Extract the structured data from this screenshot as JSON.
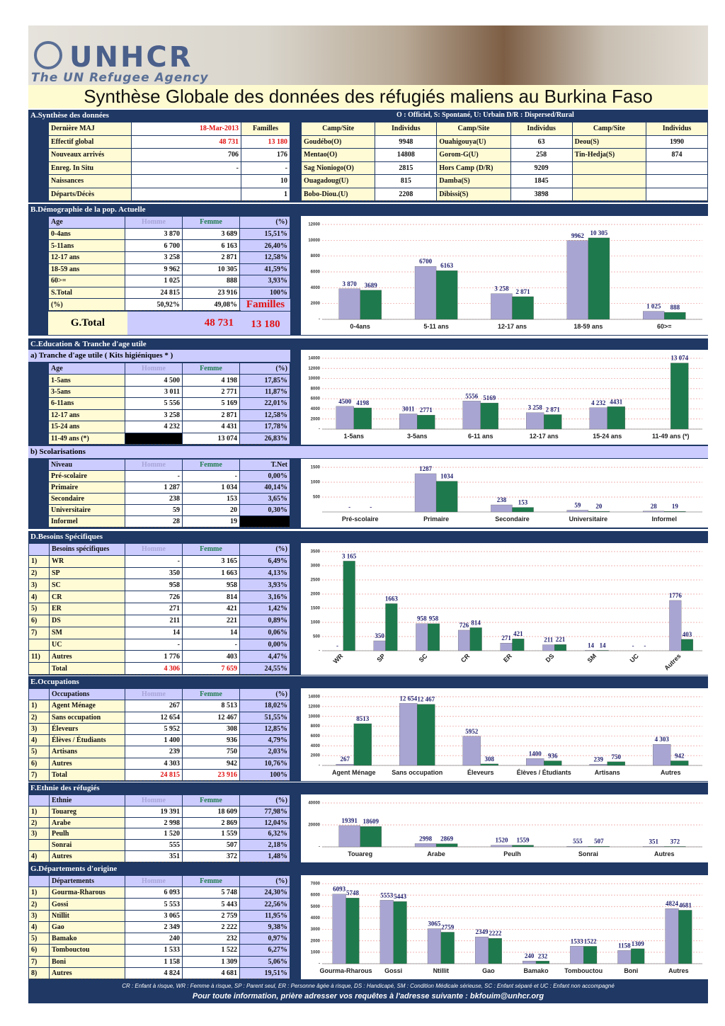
{
  "document": {
    "header": {
      "logo": "UNHCR",
      "tagline": "The UN Refugee Agency",
      "title": "Synthèse Globale des données des réfugiés maliens au Burkina Faso"
    },
    "A": {
      "title": "A.Synthèse des données",
      "legend": "O : Officiel, S: Spontané, U: Urbain D/R : Dispersed/Rural",
      "rows": [
        [
          "Dernière MAJ",
          "18-Mar-2013",
          "Familles"
        ],
        [
          "Effectif global",
          "48 731",
          "13 180"
        ],
        [
          "Nouveaux arrivés",
          "706",
          "176"
        ],
        [
          "Enreg. In Situ",
          "-",
          "-"
        ],
        [
          "Naissances",
          null,
          "10"
        ],
        [
          "Départs/Décès",
          null,
          "1"
        ]
      ],
      "camps": {
        "header": [
          "Camp/Site",
          "Individus",
          "Camp/Site",
          "Individus",
          "Camp/Site",
          "Individus"
        ],
        "rows": [
          [
            "Goudébo(O)",
            "9948",
            "Ouahigouya(U)",
            "63",
            "Deou(S)",
            "1990"
          ],
          [
            "Mentao(O)",
            "14808",
            "Gorom-G(U)",
            "258",
            "Tin-Hedja(S)",
            "874"
          ],
          [
            "Sag Nioniogo(O)",
            "2815",
            "Hors Camp (D/R)",
            "9209",
            null,
            null
          ],
          [
            "Ouagadoug(U)",
            "815",
            "Damba(S)",
            "1845",
            null,
            null
          ],
          [
            "Bobo-Diou.(U)",
            "2208",
            "Dibissi(S)",
            "3898",
            null,
            null
          ]
        ]
      }
    },
    "B": {
      "title": "B.Démographie de la pop. Actuelle",
      "header": [
        "Age",
        "Homme",
        "Femme",
        "(%)"
      ],
      "rows": [
        [
          "0-4ans",
          "3 870",
          "3 689",
          "15,51%"
        ],
        [
          "5-11ans",
          "6 700",
          "6 163",
          "26,40%"
        ],
        [
          "12-17 ans",
          "3 258",
          "2 871",
          "12,58%"
        ],
        [
          "18-59 ans",
          "9 962",
          "10 305",
          "41,59%"
        ],
        [
          "60>=",
          "1 025",
          "888",
          "3,93%"
        ],
        [
          "S.Total",
          "24 815",
          "23 916",
          "100%"
        ],
        [
          "(%)",
          "50,92%",
          "49,08%",
          null
        ]
      ],
      "gtotal_label": "G.Total",
      "gtotal": "48 731",
      "familles_label": "Familles",
      "familles": "13 180"
    },
    "C": {
      "title": "C.Education & Tranche d'age utile",
      "a": {
        "title": "a) Tranche d'age utile ( Kits higiéniques * )",
        "header": [
          "Age",
          "Homme",
          "Femme",
          "(%)"
        ],
        "rows": [
          [
            "1-5ans",
            "4 500",
            "4 198",
            "17,85%"
          ],
          [
            "3-5ans",
            "3 011",
            "2 771",
            "11,87%"
          ],
          [
            "6-11ans",
            "5 556",
            "5 169",
            "22,01%"
          ],
          [
            "12-17 ans",
            "3 258",
            "2 871",
            "12,58%"
          ],
          [
            "15-24 ans",
            "4 232",
            "4 431",
            "17,78%"
          ],
          [
            "11-49 ans (*)",
            null,
            "13 074",
            "26,83%"
          ]
        ]
      },
      "b": {
        "title": "b) Scolarisations",
        "header": [
          "Niveau",
          "Homme",
          "Femme",
          "T.Net"
        ],
        "rows": [
          [
            "Pré-scolaire",
            "-",
            "-",
            "0,00%"
          ],
          [
            "Primaire",
            "1 287",
            "1 034",
            "40,14%"
          ],
          [
            "Secondaire",
            "238",
            "153",
            "3,65%"
          ],
          [
            "Universitaire",
            "59",
            "20",
            "0,30%"
          ],
          [
            "Informel",
            "28",
            "19",
            null
          ]
        ]
      }
    },
    "D": {
      "title": "D.Besoins Spécifiques",
      "header": [
        null,
        "Besoins spécifiques",
        "Homme",
        "Femme",
        "(%)"
      ],
      "rows": [
        [
          "1)",
          "WR",
          "-",
          "3 165",
          "6,49%"
        ],
        [
          "2)",
          "SP",
          "350",
          "1 663",
          "4,13%"
        ],
        [
          "3)",
          "SC",
          "958",
          "958",
          "3,93%"
        ],
        [
          "4)",
          "CR",
          "726",
          "814",
          "3,16%"
        ],
        [
          "5)",
          "ER",
          "271",
          "421",
          "1,42%"
        ],
        [
          "6)",
          "DS",
          "211",
          "221",
          "0,89%"
        ],
        [
          "7)",
          "SM",
          "14",
          "14",
          "0,06%"
        ],
        [
          null,
          "UC",
          "-",
          "-",
          "0,00%"
        ],
        [
          "11)",
          "Autres",
          "1 776",
          "403",
          "4,47%"
        ],
        [
          null,
          "Total",
          "4 306",
          "7 659",
          "24,55%"
        ]
      ]
    },
    "E": {
      "title": "E.Occupations",
      "header": [
        null,
        "Occupations",
        "Homme",
        "Femme",
        "(%)"
      ],
      "rows": [
        [
          "1)",
          "Agent Ménage",
          "267",
          "8 513",
          "18,02%"
        ],
        [
          "2)",
          "Sans occupation",
          "12 654",
          "12 467",
          "51,55%"
        ],
        [
          "3)",
          "Éleveurs",
          "5 952",
          "308",
          "12,85%"
        ],
        [
          "4)",
          "Élèves / Étudiants",
          "1 400",
          "936",
          "4,79%"
        ],
        [
          "5)",
          "Artisans",
          "239",
          "750",
          "2,03%"
        ],
        [
          "6)",
          "Autres",
          "4 303",
          "942",
          "10,76%"
        ],
        [
          "7)",
          "Total",
          "24 815",
          "23 916",
          "100%"
        ]
      ]
    },
    "F": {
      "title": "F.Ethnie des réfugiés",
      "header": [
        null,
        "Ethnie",
        "Homme",
        "Femme",
        "(%)"
      ],
      "rows": [
        [
          "1)",
          "Touareg",
          "19 391",
          "18 609",
          "77,98%"
        ],
        [
          "2)",
          "Arabe",
          "2 998",
          "2 869",
          "12,04%"
        ],
        [
          "3)",
          "Peulh",
          "1 520",
          "1 559",
          "6,32%"
        ],
        [
          null,
          "Sonrai",
          "555",
          "507",
          "2,18%"
        ],
        [
          "4)",
          "Autres",
          "351",
          "372",
          "1,48%"
        ]
      ]
    },
    "G": {
      "title": "G.Départements d'origine",
      "header": [
        null,
        "Départements",
        "Homme",
        "Femme",
        "(%)"
      ],
      "rows": [
        [
          "1)",
          "Gourma-Rharous",
          "6 093",
          "5 748",
          "24,30%"
        ],
        [
          "2)",
          "Gossi",
          "5 553",
          "5 443",
          "22,56%"
        ],
        [
          "3)",
          "Ntillit",
          "3 065",
          "2 759",
          "11,95%"
        ],
        [
          "4)",
          "Gao",
          "2 349",
          "2 222",
          "9,38%"
        ],
        [
          "5)",
          "Bamako",
          "240",
          "232",
          "0,97%"
        ],
        [
          "6)",
          "Tombouctou",
          "1 533",
          "1 522",
          "6,27%"
        ],
        [
          "7)",
          "Boni",
          "1 158",
          "1 309",
          "5,06%"
        ],
        [
          "8)",
          "Autres",
          "4 824",
          "4 681",
          "19,51%"
        ]
      ]
    },
    "footer": {
      "legend": "CR : Enfant à risque, WR : Femme à risque, SP : Parent seul, ER : Personne âgée à risque, DS : Handicapé, SM : Condition Médicale sérieuse, SC : Enfant séparé et UC : Enfant non accompagné",
      "contact": "Pour toute information, prière adresser vos requêtes à l'adresse suivante : bkfouim@unhcr.org"
    }
  },
  "chart_data": [
    {
      "type": "bar",
      "categories": [
        "0-4ans",
        "5-11 ans",
        "12-17 ans",
        "18-59 ans",
        "60>="
      ],
      "series": [
        {
          "color": "#a9a5d3",
          "values": [
            3870,
            6700,
            3258,
            9962,
            1025
          ],
          "value_labels": [
            "3 870",
            "6700",
            "3 258",
            "9962",
            "1 025"
          ]
        },
        {
          "color": "#1e7a4c",
          "values": [
            3689,
            6163,
            2871,
            10305,
            888
          ],
          "value_labels": [
            "3689",
            "6163",
            "2 871",
            "10 305",
            "888"
          ]
        }
      ],
      "ylim": [
        0,
        12000
      ],
      "yticks": [
        {
          "value": 0,
          "label": "-"
        },
        2000,
        4000,
        6000,
        8000,
        10000,
        12000
      ],
      "grid": true
    },
    {
      "type": "bar",
      "categories": [
        "1-5ans",
        "3-5ans",
        "6-11 ans",
        "12-17 ans",
        "15-24 ans",
        "11-49 ans (*)"
      ],
      "series": [
        {
          "color": "#a9a5d3",
          "values": [
            4500,
            3011,
            5556,
            3258,
            4232,
            null
          ],
          "value_labels": [
            "4500",
            "3011",
            "5556",
            "3 258",
            "4 232",
            null
          ]
        },
        {
          "color": "#1e7a4c",
          "values": [
            4198,
            2771,
            5169,
            2871,
            4431,
            13074
          ],
          "value_labels": [
            "4198",
            "2771",
            "5169",
            "2 871",
            "4431",
            "13 074"
          ]
        }
      ],
      "ylim": [
        0,
        14000
      ],
      "yticks": [
        {
          "value": 0,
          "label": "-"
        },
        2000,
        4000,
        6000,
        8000,
        10000,
        12000,
        14000
      ],
      "grid": true
    },
    {
      "type": "bar",
      "categories": [
        "Pré-scolaire",
        "Primaire",
        "Secondaire",
        "Universitaire",
        "Informel"
      ],
      "series": [
        {
          "color": "#a9a5d3",
          "values": [
            0,
            1287,
            238,
            59,
            28
          ],
          "value_labels": [
            "-",
            "1287",
            "238",
            "59",
            "28"
          ]
        },
        {
          "color": "#1e7a4c",
          "values": [
            0,
            1034,
            153,
            20,
            19
          ],
          "value_labels": [
            "-",
            "1034",
            "153",
            "20",
            "19"
          ]
        }
      ],
      "ylim": [
        0,
        1500
      ],
      "yticks": [
        500,
        1000,
        1500
      ],
      "grid": true
    },
    {
      "type": "bar",
      "categories": [
        "WR",
        "SP",
        "SC",
        "CR",
        "ER",
        "DS",
        "SM",
        "UC",
        "Autres"
      ],
      "x_label_rotation": -45,
      "series": [
        {
          "color": "#a9a5d3",
          "values": [
            0,
            350,
            958,
            726,
            271,
            211,
            14,
            0,
            1776
          ],
          "value_labels": [
            "-",
            "350",
            "958",
            "726",
            "271",
            "211",
            "14",
            "-",
            "1776"
          ]
        },
        {
          "color": "#1e7a4c",
          "values": [
            3165,
            1663,
            958,
            814,
            421,
            221,
            14,
            0,
            403
          ],
          "value_labels": [
            "3 165",
            "1663",
            "958",
            "814",
            "421",
            "221",
            "14",
            "-",
            "403"
          ]
        }
      ],
      "ylim": [
        0,
        3500
      ],
      "yticks": [
        {
          "value": 0,
          "label": "-"
        },
        500,
        1000,
        1500,
        2000,
        2500,
        3000,
        3500
      ],
      "grid": true
    },
    {
      "type": "bar",
      "categories": [
        "Agent Ménage",
        "Sans occupation",
        "Éleveurs",
        "Élèves / Étudiants",
        "Artisans",
        "Autres"
      ],
      "series": [
        {
          "color": "#a9a5d3",
          "values": [
            267,
            12654,
            5952,
            1400,
            239,
            4303
          ],
          "value_labels": [
            "267",
            "12 654",
            "5952",
            "1400",
            "239",
            "4 303"
          ]
        },
        {
          "color": "#1e7a4c",
          "values": [
            8513,
            12467,
            308,
            936,
            750,
            942
          ],
          "value_labels": [
            "8513",
            "12 467",
            "308",
            "936",
            "750",
            "942"
          ]
        }
      ],
      "ylim": [
        0,
        14000
      ],
      "yticks": [
        {
          "value": 0,
          "label": "-"
        },
        2000,
        4000,
        6000,
        8000,
        10000,
        12000,
        14000
      ],
      "grid": true
    },
    {
      "type": "bar",
      "categories": [
        "Touareg",
        "Arabe",
        "Peulh",
        "Sonrai",
        "Autres"
      ],
      "series": [
        {
          "color": "#a9a5d3",
          "values": [
            19391,
            2998,
            1520,
            555,
            351
          ],
          "value_labels": [
            "19391",
            "2998",
            "1520",
            "555",
            "351"
          ]
        },
        {
          "color": "#1e7a4c",
          "values": [
            18609,
            2869,
            1559,
            507,
            372
          ],
          "value_labels": [
            "18609",
            "2869",
            "1559",
            "507",
            "372"
          ]
        }
      ],
      "ylim": [
        0,
        40000
      ],
      "yticks": [
        {
          "value": 0,
          "label": "-"
        },
        20000,
        40000
      ],
      "grid": true
    },
    {
      "type": "bar",
      "categories": [
        "Gourma-Rharous",
        "Gossi",
        "Ntillit",
        "Gao",
        "Bamako",
        "Tombouctou",
        "Boni",
        "Autres"
      ],
      "series": [
        {
          "color": "#a9a5d3",
          "values": [
            6093,
            5553,
            3065,
            2349,
            240,
            1533,
            1158,
            4824
          ],
          "value_labels": [
            "6093",
            "5553",
            "3065",
            "2349",
            "240",
            "1533",
            "1158",
            "4824"
          ]
        },
        {
          "color": "#1e7a4c",
          "values": [
            5748,
            5443,
            2759,
            2222,
            232,
            1522,
            1309,
            4681
          ],
          "value_labels": [
            "5748",
            "5443",
            "2759",
            "2222",
            "232",
            "1522",
            "1309",
            "4681"
          ]
        }
      ],
      "ylim": [
        0,
        7000
      ],
      "yticks": [
        {
          "value": 0,
          "label": "-"
        },
        1000,
        2000,
        3000,
        4000,
        5000,
        6000,
        7000
      ],
      "grid": true
    }
  ]
}
